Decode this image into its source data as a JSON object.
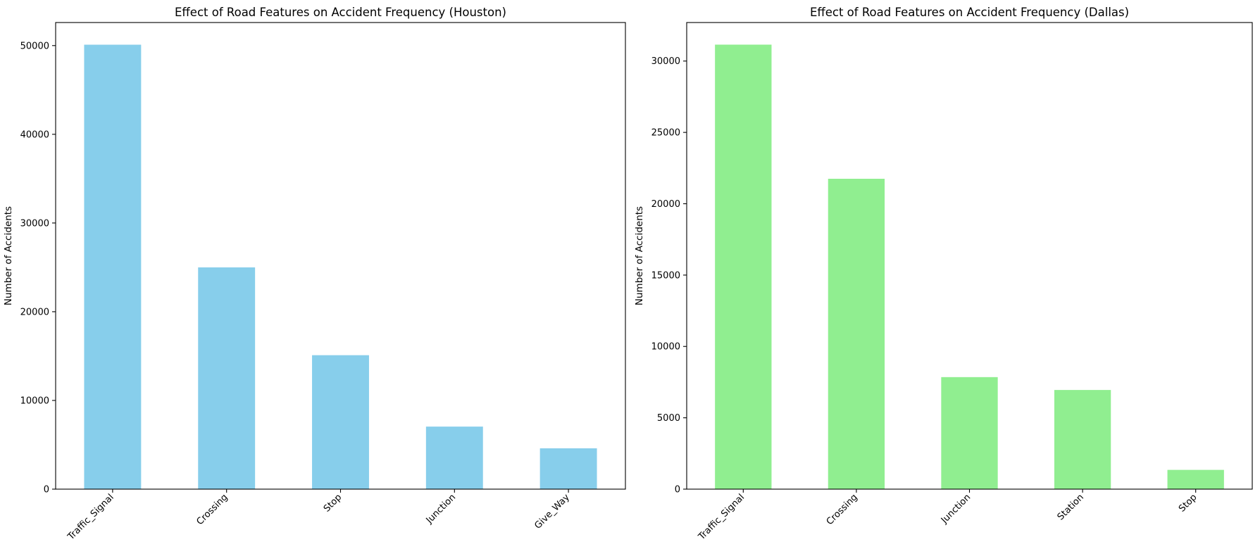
{
  "chart_data": [
    {
      "type": "bar",
      "title": "Effect of Road Features on Accident Frequency (Houston)",
      "xlabel": "",
      "ylabel": "Number of Accidents",
      "categories": [
        "Traffic_Signal",
        "Crossing",
        "Stop",
        "Junction",
        "Give_Way"
      ],
      "values": [
        50100,
        25000,
        15100,
        7050,
        4600
      ],
      "yticks": [
        0,
        10000,
        20000,
        30000,
        40000,
        50000
      ],
      "ylim": [
        0,
        52600
      ],
      "color": "#87ceeb",
      "grid": false
    },
    {
      "type": "bar",
      "title": "Effect of Road Features on Accident Frequency (Dallas)",
      "xlabel": "",
      "ylabel": "Number of Accidents",
      "categories": [
        "Traffic_Signal",
        "Crossing",
        "Junction",
        "Station",
        "Stop"
      ],
      "values": [
        31150,
        21750,
        7850,
        6950,
        1350
      ],
      "yticks": [
        0,
        5000,
        10000,
        15000,
        20000,
        25000,
        30000
      ],
      "ylim": [
        0,
        32700
      ],
      "color": "#90ee90",
      "grid": false
    }
  ]
}
